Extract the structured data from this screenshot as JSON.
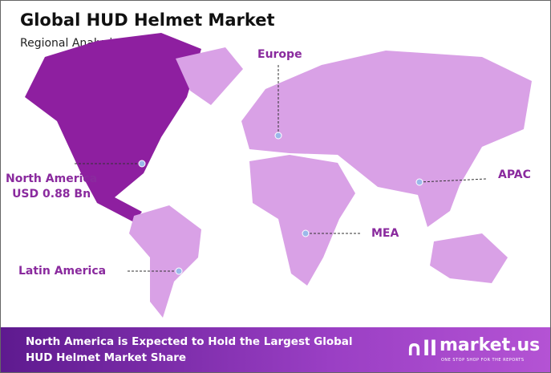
{
  "title": "Global HUD Helmet Market",
  "subtitle": "Regional Analysis in 2023",
  "colors": {
    "highlight": "#8e1fa0",
    "other": "#d9a1e6",
    "label": "#8a2a9e",
    "banner_start": "#5e1a8f",
    "banner_end": "#b453d4"
  },
  "regions": {
    "north_america": {
      "name": "North America",
      "value": "USD 0.88 Bn",
      "highlighted": true
    },
    "europe": {
      "name": "Europe"
    },
    "apac": {
      "name": "APAC"
    },
    "mea": {
      "name": "MEA"
    },
    "latin_america": {
      "name": "Latin America"
    }
  },
  "banner": {
    "line1": "North America is Expected to Hold the Largest Global",
    "line2": "HUD Helmet Market Share"
  },
  "logo": {
    "name": "market.us",
    "tagline": "ONE STOP SHOP FOR THE REPORTS",
    "icon": "market-us-logo-icon"
  }
}
